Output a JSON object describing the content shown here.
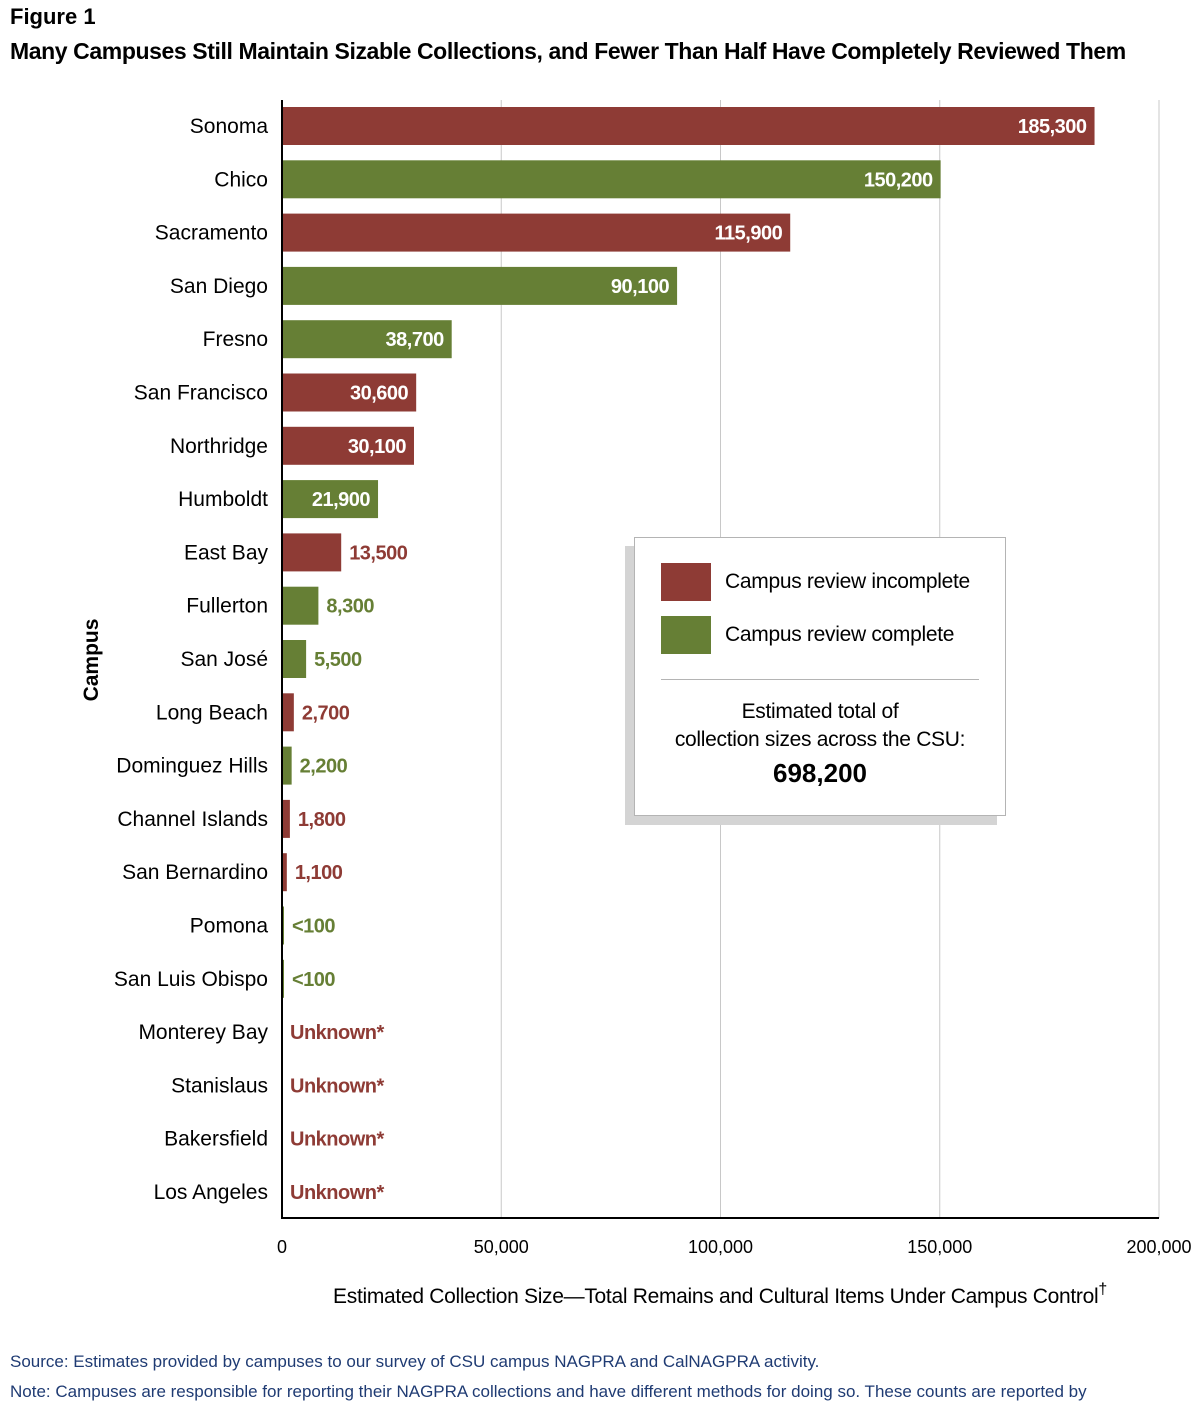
{
  "figure": {
    "label": "Figure 1",
    "title": "Many Campuses Still Maintain Sizable Collections, and Fewer Than Half Have Completely Reviewed Them"
  },
  "source": "Source:  Estimates provided by campuses to our survey of CSU campus NAGPRA and CalNAGPRA activity.",
  "note_partial": "Note:  Campuses are responsible for reporting their NAGPRA collections and have different methods for doing so. These counts are reported by",
  "legend": {
    "incomplete_label": "Campus review incomplete",
    "complete_label": "Campus review complete",
    "total_line1": "Estimated total of",
    "total_line2": "collection sizes across the CSU:",
    "total_value": "698,200"
  },
  "colors": {
    "incomplete": "#8e3b35",
    "complete": "#667f35"
  },
  "chart_data": {
    "type": "bar",
    "orientation": "horizontal",
    "xlabel": "Estimated Collection Size—Total Remains and Cultural Items Under Campus Control",
    "xlabel_superscript": "†",
    "ylabel": "Campus",
    "xlim": [
      0,
      200000
    ],
    "x_ticks": [
      0,
      50000,
      100000,
      150000,
      200000
    ],
    "x_tick_labels": [
      "0",
      "50,000",
      "100,000",
      "150,000",
      "200,000"
    ],
    "grid": "vertical",
    "legend_position": "center-right",
    "series": [
      {
        "name": "Campus review incomplete"
      },
      {
        "name": "Campus review complete"
      }
    ],
    "categories": [
      "Sonoma",
      "Chico",
      "Sacramento",
      "San Diego",
      "Fresno",
      "San Francisco",
      "Northridge",
      "Humboldt",
      "East Bay",
      "Fullerton",
      "San José",
      "Long Beach",
      "Dominguez Hills",
      "Channel Islands",
      "San Bernardino",
      "Pomona",
      "San Luis Obispo",
      "Monterey Bay",
      "Stanislaus",
      "Bakersfield",
      "Los Angeles"
    ],
    "values": [
      185300,
      150200,
      115900,
      90100,
      38700,
      30600,
      30100,
      21900,
      13500,
      8300,
      5500,
      2700,
      2200,
      1800,
      1100,
      100,
      100,
      null,
      null,
      null,
      null
    ],
    "value_labels": [
      "185,300",
      "150,200",
      "115,900",
      "90,100",
      "38,700",
      "30,600",
      "30,100",
      "21,900",
      "13,500",
      "8,300",
      "5,500",
      "2,700",
      "2,200",
      "1,800",
      "1,100",
      "<100",
      "<100",
      "Unknown*",
      "Unknown*",
      "Unknown*",
      "Unknown*"
    ],
    "status": [
      "incomplete",
      "complete",
      "incomplete",
      "complete",
      "complete",
      "incomplete",
      "incomplete",
      "complete",
      "incomplete",
      "complete",
      "complete",
      "incomplete",
      "complete",
      "incomplete",
      "incomplete",
      "complete",
      "complete",
      "incomplete",
      "incomplete",
      "incomplete",
      "incomplete"
    ]
  }
}
